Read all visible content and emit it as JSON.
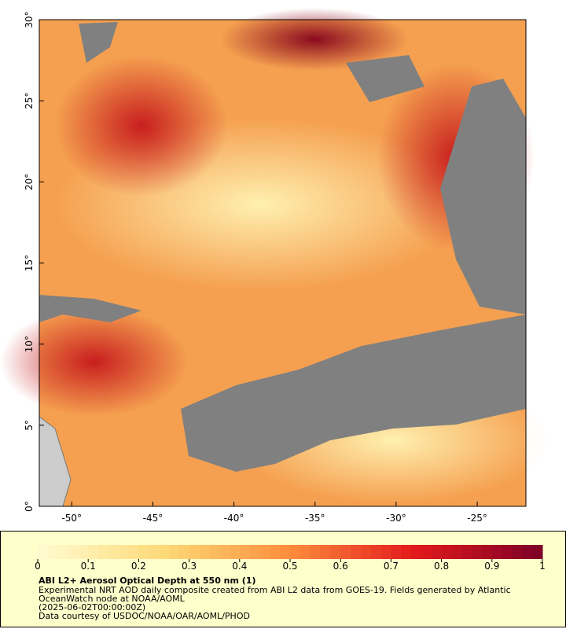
{
  "map": {
    "xlim": [
      -52,
      -22
    ],
    "ylim": [
      0,
      30
    ],
    "xticks": [
      {
        "value": -50,
        "label": "-50°"
      },
      {
        "value": -45,
        "label": "-45°"
      },
      {
        "value": -40,
        "label": "-40°"
      },
      {
        "value": -35,
        "label": "-35°"
      },
      {
        "value": -30,
        "label": "-30°"
      },
      {
        "value": -25,
        "label": "-25°"
      }
    ],
    "yticks": [
      {
        "value": 0,
        "label": "0°"
      },
      {
        "value": 5,
        "label": "5°"
      },
      {
        "value": 10,
        "label": "10°"
      },
      {
        "value": 15,
        "label": "15°"
      },
      {
        "value": 20,
        "label": "20°"
      },
      {
        "value": 25,
        "label": "25°"
      },
      {
        "value": 30,
        "label": "30°"
      }
    ]
  },
  "colorbar": {
    "lim": [
      0,
      1
    ],
    "ticks": [
      0,
      0.1,
      0.2,
      0.3,
      0.4,
      0.5,
      0.6,
      0.7,
      0.8,
      0.9,
      1
    ]
  },
  "legend": {
    "title": "ABI L2+ Aerosol Optical Depth at 550 nm (1)",
    "description": [
      "Experimental NRT AOD daily composite created from ABI L2 data from GOES-19. Fields generated by Atlantic",
      "OceanWatch node at NOAA/AOML",
      "(2025-06-02T00:00:00Z)",
      "Data courtesy of USDOC/NOAA/OAR/AOML/PHOD"
    ]
  }
}
